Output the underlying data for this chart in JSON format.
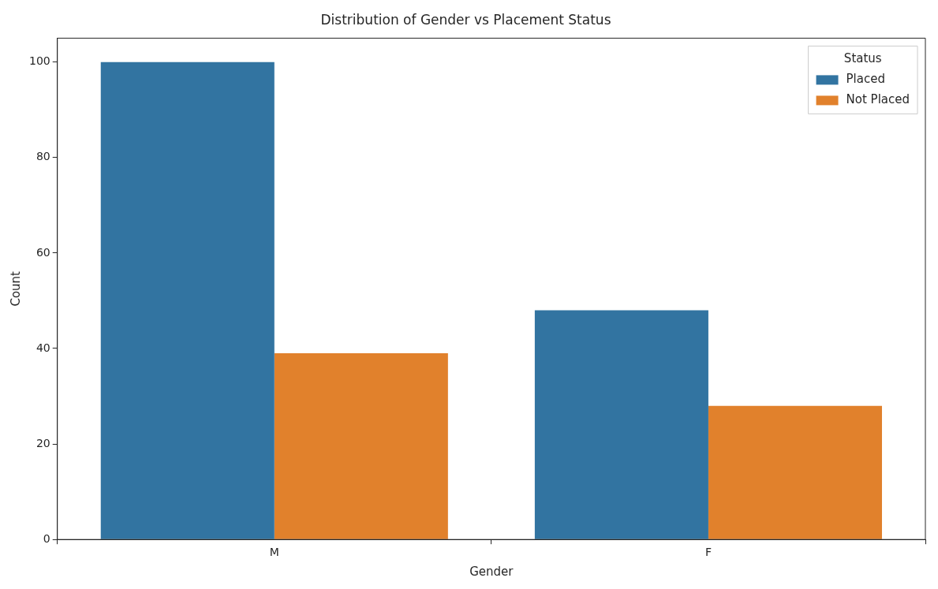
{
  "chart_data": {
    "type": "bar",
    "title": "Distribution of Gender vs Placement Status",
    "xlabel": "Gender",
    "ylabel": "Count",
    "legend_title": "Status",
    "categories": [
      "M",
      "F"
    ],
    "series": [
      {
        "name": "Placed",
        "color": "#3274a1",
        "values": [
          100,
          48
        ]
      },
      {
        "name": "Not Placed",
        "color": "#e1812c",
        "values": [
          39,
          28
        ]
      }
    ],
    "ylim": [
      0,
      105
    ],
    "yticks": [
      0,
      20,
      40,
      60,
      80,
      100
    ],
    "grid": false,
    "legend": "top right"
  }
}
